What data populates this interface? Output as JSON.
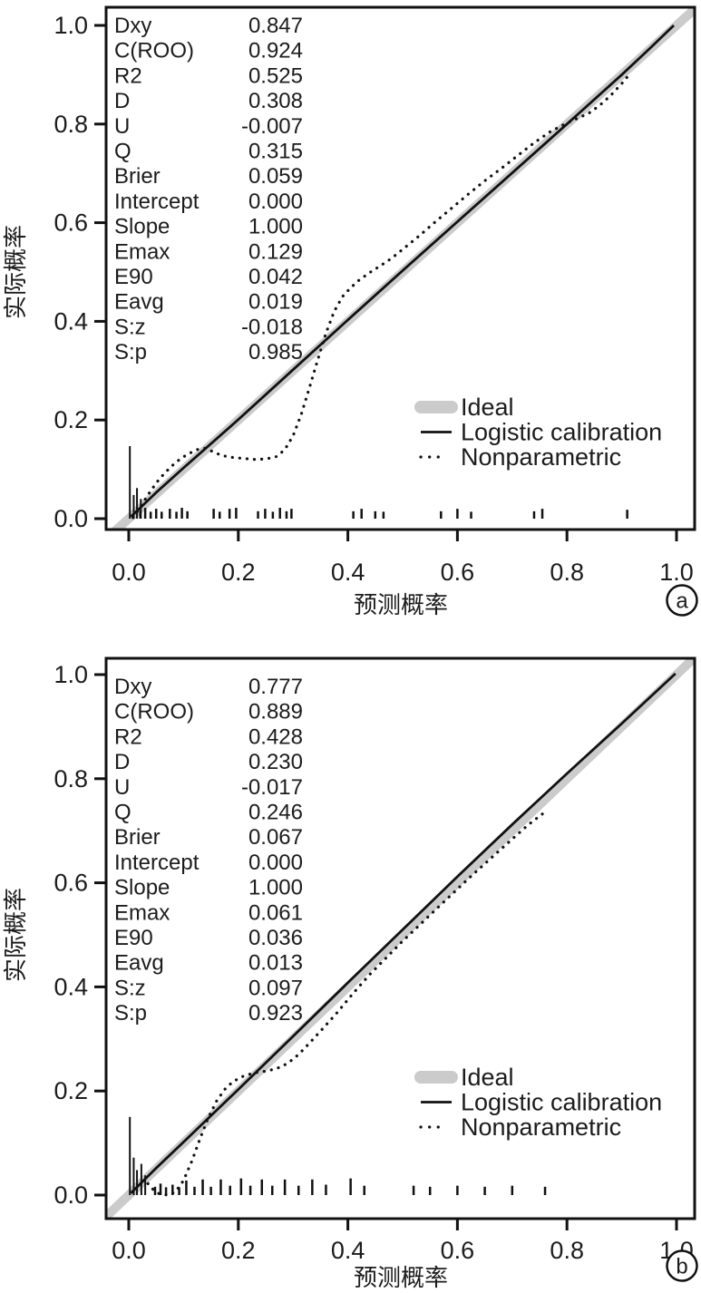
{
  "figure": {
    "background": "#ffffff",
    "text_color": "#1c1c1c",
    "line_color": "#111111",
    "ideal_color": "#cbcbcb",
    "panel_a_label": "a",
    "panel_b_label": "b"
  },
  "chart_data": [
    {
      "type": "line",
      "panel_label": "a",
      "title": "",
      "xlabel": "预测概率",
      "ylabel": "实际概率",
      "xlim": [
        0.0,
        1.0
      ],
      "ylim": [
        0.0,
        1.0
      ],
      "x_ticks": [
        0.0,
        0.2,
        0.4,
        0.6,
        0.8,
        1.0
      ],
      "y_ticks": [
        0.0,
        0.2,
        0.4,
        0.6,
        0.8,
        1.0
      ],
      "x_tick_labels": [
        "0.0",
        "0.2",
        "0.4",
        "0.6",
        "0.8",
        "1.0"
      ],
      "y_tick_labels": [
        "0.0",
        "0.2",
        "0.4",
        "0.6",
        "0.8",
        "1.0"
      ],
      "grid": false,
      "legend_position": "lower right",
      "legend": [
        {
          "label": "Ideal",
          "style": "ideal-thick-gray"
        },
        {
          "label": "Logistic calibration",
          "style": "solid-black"
        },
        {
          "label": "Nonparametric",
          "style": "dotted-black"
        }
      ],
      "stats": [
        {
          "label": "Dxy",
          "value": "0.847"
        },
        {
          "label": "C(ROO)",
          "value": "0.924"
        },
        {
          "label": "R2",
          "value": "0.525"
        },
        {
          "label": "D",
          "value": "0.308"
        },
        {
          "label": "U",
          "value": "-0.007"
        },
        {
          "label": "Q",
          "value": "0.315"
        },
        {
          "label": "Brier",
          "value": "0.059"
        },
        {
          "label": "Intercept",
          "value": "0.000"
        },
        {
          "label": "Slope",
          "value": "1.000"
        },
        {
          "label": "Emax",
          "value": "0.129"
        },
        {
          "label": "E90",
          "value": "0.042"
        },
        {
          "label": "Eavg",
          "value": "0.019"
        },
        {
          "label": "S:z",
          "value": "-0.018"
        },
        {
          "label": "S:p",
          "value": "0.985"
        }
      ],
      "series": [
        {
          "name": "Ideal",
          "style": "ideal-thick-gray",
          "points": [
            [
              -0.05,
              -0.05
            ],
            [
              1.05,
              1.05
            ]
          ]
        },
        {
          "name": "Logistic calibration",
          "style": "solid-black",
          "points": [
            [
              0.004,
              0.004
            ],
            [
              0.05,
              0.053
            ],
            [
              0.1,
              0.103
            ],
            [
              0.2,
              0.201
            ],
            [
              0.3,
              0.302
            ],
            [
              0.4,
              0.403
            ],
            [
              0.5,
              0.503
            ],
            [
              0.6,
              0.602
            ],
            [
              0.7,
              0.701
            ],
            [
              0.8,
              0.8
            ],
            [
              0.9,
              0.9
            ],
            [
              0.95,
              0.952
            ],
            [
              0.995,
              1.0
            ]
          ]
        },
        {
          "name": "Nonparametric",
          "style": "dotted-black",
          "points": [
            [
              0.008,
              0.002
            ],
            [
              0.02,
              0.022
            ],
            [
              0.035,
              0.048
            ],
            [
              0.05,
              0.072
            ],
            [
              0.065,
              0.092
            ],
            [
              0.08,
              0.108
            ],
            [
              0.095,
              0.122
            ],
            [
              0.11,
              0.132
            ],
            [
              0.125,
              0.14
            ],
            [
              0.14,
              0.143
            ],
            [
              0.155,
              0.135
            ],
            [
              0.17,
              0.128
            ],
            [
              0.19,
              0.124
            ],
            [
              0.21,
              0.122
            ],
            [
              0.23,
              0.12
            ],
            [
              0.25,
              0.121
            ],
            [
              0.27,
              0.126
            ],
            [
              0.285,
              0.14
            ],
            [
              0.3,
              0.168
            ],
            [
              0.315,
              0.212
            ],
            [
              0.33,
              0.266
            ],
            [
              0.345,
              0.322
            ],
            [
              0.36,
              0.376
            ],
            [
              0.375,
              0.42
            ],
            [
              0.39,
              0.45
            ],
            [
              0.405,
              0.468
            ],
            [
              0.42,
              0.483
            ],
            [
              0.44,
              0.499
            ],
            [
              0.46,
              0.513
            ],
            [
              0.48,
              0.528
            ],
            [
              0.5,
              0.546
            ],
            [
              0.53,
              0.573
            ],
            [
              0.56,
              0.602
            ],
            [
              0.59,
              0.63
            ],
            [
              0.62,
              0.658
            ],
            [
              0.65,
              0.685
            ],
            [
              0.68,
              0.71
            ],
            [
              0.71,
              0.736
            ],
            [
              0.74,
              0.762
            ],
            [
              0.77,
              0.785
            ],
            [
              0.8,
              0.802
            ],
            [
              0.82,
              0.812
            ],
            [
              0.84,
              0.822
            ],
            [
              0.86,
              0.838
            ],
            [
              0.88,
              0.858
            ],
            [
              0.9,
              0.882
            ],
            [
              0.915,
              0.902
            ]
          ]
        }
      ],
      "spikes": [
        [
          0.002,
          0.147
        ],
        [
          0.009,
          0.048
        ],
        [
          0.015,
          0.062
        ],
        [
          0.022,
          0.04
        ]
      ],
      "rug": [
        [
          0.021,
          0.016
        ],
        [
          0.03,
          0.022
        ],
        [
          0.04,
          0.014
        ],
        [
          0.05,
          0.02
        ],
        [
          0.06,
          0.014
        ],
        [
          0.075,
          0.02
        ],
        [
          0.087,
          0.014
        ],
        [
          0.097,
          0.022
        ],
        [
          0.107,
          0.015
        ],
        [
          0.155,
          0.02
        ],
        [
          0.166,
          0.014
        ],
        [
          0.184,
          0.02
        ],
        [
          0.196,
          0.022
        ],
        [
          0.236,
          0.015
        ],
        [
          0.249,
          0.02
        ],
        [
          0.263,
          0.014
        ],
        [
          0.276,
          0.022
        ],
        [
          0.288,
          0.015
        ],
        [
          0.297,
          0.02
        ],
        [
          0.41,
          0.015
        ],
        [
          0.425,
          0.02
        ],
        [
          0.45,
          0.015
        ],
        [
          0.465,
          0.014
        ],
        [
          0.57,
          0.015
        ],
        [
          0.6,
          0.02
        ],
        [
          0.625,
          0.014
        ],
        [
          0.74,
          0.015
        ],
        [
          0.755,
          0.02
        ],
        [
          0.91,
          0.018
        ]
      ]
    },
    {
      "type": "line",
      "panel_label": "b",
      "title": "",
      "xlabel": "预测概率",
      "ylabel": "实际概率",
      "xlim": [
        0.0,
        1.0
      ],
      "ylim": [
        0.0,
        1.0
      ],
      "x_ticks": [
        0.0,
        0.2,
        0.4,
        0.6,
        0.8,
        1.0
      ],
      "y_ticks": [
        0.0,
        0.2,
        0.4,
        0.6,
        0.8,
        1.0
      ],
      "x_tick_labels": [
        "0.0",
        "0.2",
        "0.4",
        "0.6",
        "0.8",
        "1.0"
      ],
      "y_tick_labels": [
        "0.0",
        "0.2",
        "0.4",
        "0.6",
        "0.8",
        "1.0"
      ],
      "grid": false,
      "legend_position": "lower right",
      "legend": [
        {
          "label": "Ideal",
          "style": "ideal-thick-gray"
        },
        {
          "label": "Logistic calibration",
          "style": "solid-black"
        },
        {
          "label": "Nonparametric",
          "style": "dotted-black"
        }
      ],
      "stats": [
        {
          "label": "Dxy",
          "value": "0.777"
        },
        {
          "label": "C(ROO)",
          "value": "0.889"
        },
        {
          "label": "R2",
          "value": "0.428"
        },
        {
          "label": "D",
          "value": "0.230"
        },
        {
          "label": "U",
          "value": "-0.017"
        },
        {
          "label": "Q",
          "value": "0.246"
        },
        {
          "label": "Brier",
          "value": "0.067"
        },
        {
          "label": "Intercept",
          "value": "0.000"
        },
        {
          "label": "Slope",
          "value": "1.000"
        },
        {
          "label": "Emax",
          "value": "0.061"
        },
        {
          "label": "E90",
          "value": "0.036"
        },
        {
          "label": "Eavg",
          "value": "0.013"
        },
        {
          "label": "S:z",
          "value": "0.097"
        },
        {
          "label": "S:p",
          "value": "0.923"
        }
      ],
      "series": [
        {
          "name": "Ideal",
          "style": "ideal-thick-gray",
          "points": [
            [
              -0.05,
              -0.05
            ],
            [
              1.05,
              1.05
            ]
          ]
        },
        {
          "name": "Logistic calibration",
          "style": "solid-black",
          "points": [
            [
              0.004,
              0.004
            ],
            [
              0.05,
              0.052
            ],
            [
              0.1,
              0.102
            ],
            [
              0.2,
              0.203
            ],
            [
              0.3,
              0.305
            ],
            [
              0.4,
              0.408
            ],
            [
              0.5,
              0.51
            ],
            [
              0.6,
              0.612
            ],
            [
              0.7,
              0.712
            ],
            [
              0.8,
              0.81
            ],
            [
              0.9,
              0.906
            ],
            [
              0.998,
              1.002
            ]
          ]
        },
        {
          "name": "Nonparametric",
          "style": "dotted-black",
          "points": [
            [
              0.035,
              0.022
            ],
            [
              0.045,
              0.01
            ],
            [
              0.055,
              0.003
            ],
            [
              0.07,
              0.0
            ],
            [
              0.085,
              0.006
            ],
            [
              0.1,
              0.028
            ],
            [
              0.115,
              0.065
            ],
            [
              0.13,
              0.108
            ],
            [
              0.145,
              0.148
            ],
            [
              0.16,
              0.18
            ],
            [
              0.175,
              0.203
            ],
            [
              0.19,
              0.218
            ],
            [
              0.21,
              0.229
            ],
            [
              0.23,
              0.235
            ],
            [
              0.25,
              0.238
            ],
            [
              0.27,
              0.243
            ],
            [
              0.29,
              0.253
            ],
            [
              0.31,
              0.27
            ],
            [
              0.33,
              0.292
            ],
            [
              0.35,
              0.315
            ],
            [
              0.38,
              0.35
            ],
            [
              0.41,
              0.388
            ],
            [
              0.44,
              0.424
            ],
            [
              0.47,
              0.456
            ],
            [
              0.5,
              0.488
            ],
            [
              0.53,
              0.518
            ],
            [
              0.56,
              0.548
            ],
            [
              0.59,
              0.578
            ],
            [
              0.62,
              0.608
            ],
            [
              0.66,
              0.646
            ],
            [
              0.7,
              0.684
            ],
            [
              0.73,
              0.712
            ],
            [
              0.755,
              0.732
            ]
          ]
        }
      ],
      "spikes": [
        [
          0.002,
          0.15
        ],
        [
          0.009,
          0.072
        ],
        [
          0.015,
          0.048
        ],
        [
          0.023,
          0.06
        ],
        [
          0.03,
          0.038
        ]
      ],
      "rug": [
        [
          0.048,
          0.016
        ],
        [
          0.058,
          0.022
        ],
        [
          0.068,
          0.015
        ],
        [
          0.08,
          0.02
        ],
        [
          0.092,
          0.015
        ],
        [
          0.105,
          0.028
        ],
        [
          0.12,
          0.016
        ],
        [
          0.135,
          0.03
        ],
        [
          0.15,
          0.016
        ],
        [
          0.168,
          0.03
        ],
        [
          0.185,
          0.018
        ],
        [
          0.205,
          0.032
        ],
        [
          0.222,
          0.018
        ],
        [
          0.243,
          0.03
        ],
        [
          0.262,
          0.018
        ],
        [
          0.285,
          0.03
        ],
        [
          0.31,
          0.018
        ],
        [
          0.335,
          0.03
        ],
        [
          0.36,
          0.02
        ],
        [
          0.405,
          0.032
        ],
        [
          0.43,
          0.018
        ],
        [
          0.52,
          0.018
        ],
        [
          0.55,
          0.016
        ],
        [
          0.6,
          0.018
        ],
        [
          0.65,
          0.016
        ],
        [
          0.7,
          0.018
        ],
        [
          0.76,
          0.016
        ]
      ]
    }
  ]
}
